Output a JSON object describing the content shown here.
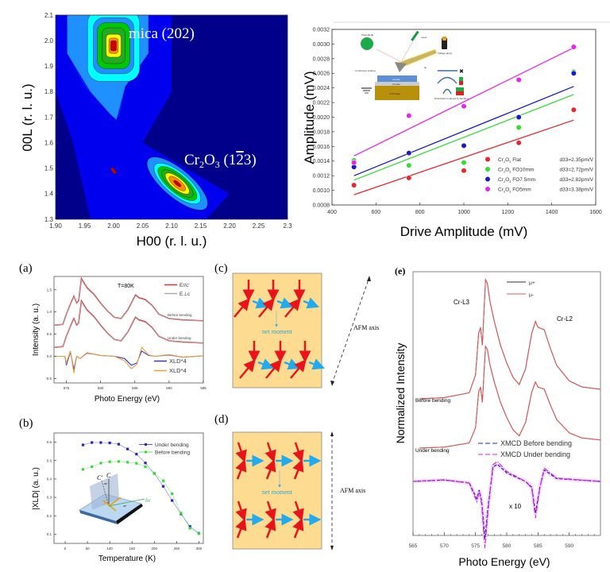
{
  "chart_data": [
    {
      "id": "rsm",
      "type": "heatmap",
      "title": "",
      "xlabel": "H00 (r. l. u.)",
      "ylabel": "00L (r. l. u.)",
      "xlim": [
        1.9,
        2.3
      ],
      "ylim": [
        1.3,
        2.1
      ],
      "xticks": [
        "1.90",
        "1.95",
        "2.00",
        "2.05",
        "2.10",
        "2.15",
        "2.20",
        "2.25",
        "2.3"
      ],
      "yticks": [
        "1.3",
        "1.4",
        "1.5",
        "1.6",
        "1.7",
        "1.8",
        "1.9",
        "2.0",
        "2.1"
      ],
      "peaks": [
        {
          "label": "mica (202)",
          "h": 2.0,
          "l": 1.98
        },
        {
          "label": "Cr2O3 (1-23)",
          "h": 2.11,
          "l": 1.44
        },
        {
          "label": "",
          "h": 2.0,
          "l": 1.49
        }
      ],
      "annotations": {
        "mica": "mica (202)",
        "cr_pre": "Cr",
        "cr_sub1": "2",
        "cr_mid": "O",
        "cr_sub2": "3",
        "cr_idx": " (1",
        "cr_bar": "2",
        "cr_end": "3)"
      },
      "colormap": [
        "#00008b",
        "#0000ff",
        "#1e90ff",
        "#00ffff",
        "#00c800",
        "#ffff00",
        "#ff8c00",
        "#cc0000"
      ]
    },
    {
      "id": "pfm",
      "type": "scatter",
      "xlabel": "Drive Amplitude (mV)",
      "ylabel": "Amplitude (mV)",
      "xlim": [
        400,
        1600
      ],
      "ylim": [
        0.0008,
        0.0032
      ],
      "xticks": [
        "400",
        "600",
        "800",
        "1000",
        "1200",
        "1400",
        "1600"
      ],
      "yticks": [
        "0.0008",
        "0.0010",
        "0.0012",
        "0.0014",
        "0.0016",
        "0.0018",
        "0.0020",
        "0.0022",
        "0.0024",
        "0.0026",
        "0.0028",
        "0.0030",
        "0.0032"
      ],
      "x": [
        500,
        750,
        1000,
        1250,
        1500
      ],
      "series": [
        {
          "name": "Cr2O3 Flat",
          "label_main": "Flat",
          "d33": "d33=2.35pm/V",
          "color": "#e8262b",
          "values": [
            0.00107,
            0.00117,
            0.00127,
            0.00165,
            0.0021
          ],
          "fit": [
            0.00094,
            0.00196
          ]
        },
        {
          "name": "Cr2O3 FO10mm",
          "label_main": "FO10mm",
          "d33": "d33=2.72pm/V",
          "color": "#33dd33",
          "values": [
            0.00141,
            0.00134,
            0.00138,
            0.00186,
            0.00262
          ],
          "fit": [
            0.00114,
            0.00231
          ]
        },
        {
          "name": "Cr2O3 FO7.5mm",
          "label_main": "FO7.5mm",
          "d33": "d33=2.82pm/V",
          "color": "#1a1acc",
          "values": [
            0.00132,
            0.00151,
            0.00161,
            0.002,
            0.0026
          ],
          "fit": [
            0.0012,
            0.00242
          ]
        },
        {
          "name": "Cr2O3 FO5mm",
          "label_main": "FO5mm",
          "d33": "d33=3.38pm/V",
          "color": "#ee22ee",
          "values": [
            0.00138,
            0.00202,
            0.00215,
            0.00251,
            0.00296
          ],
          "fit": [
            0.00147,
            0.00295
          ]
        }
      ],
      "inset_labels": [
        "Photodiode",
        "Laser",
        "Voltage apply",
        "Conductive coating",
        "tip",
        "sample",
        "Al plate",
        "XYZ stage",
        "Polarization induced by bending"
      ]
    },
    {
      "id": "a",
      "type": "line",
      "panel": "(a)",
      "xlabel": "Photo Energy (eV)",
      "ylabel": "Intensity (a. u.)",
      "xlim": [
        573.2,
        595
      ],
      "ylim": [
        -0.6,
        1.8
      ],
      "xticks": [
        "575",
        "580",
        "585",
        "590",
        "595"
      ],
      "yticks": [
        "-0.5",
        "0.0",
        "0.5",
        "1.0",
        "1.5"
      ],
      "annotation": "T=80K",
      "curve_labels": [
        "Before bending",
        "Under bending"
      ],
      "legend": [
        {
          "name": "E//c'",
          "color": "#e03030"
        },
        {
          "name": "E⊥c",
          "color": "#aaaaaa"
        },
        {
          "name": "XLD*4",
          "color": "#3333dd"
        },
        {
          "name": "XLD*4",
          "color": "#f0a030"
        }
      ],
      "series": [
        {
          "name": "Before bending E//c'",
          "color": "#e03030",
          "offset": 0.7,
          "points": [
            [
              573.2,
              0
            ],
            [
              574.5,
              0.02
            ],
            [
              575,
              0.25
            ],
            [
              575.8,
              0.55
            ],
            [
              576.1,
              0.65
            ],
            [
              576.5,
              0.5
            ],
            [
              576.8,
              0.55
            ],
            [
              577.2,
              1.05
            ],
            [
              577.6,
              0.95
            ],
            [
              578,
              0.85
            ],
            [
              579,
              0.7
            ],
            [
              580,
              0.5
            ],
            [
              581,
              0.32
            ],
            [
              582,
              0.18
            ],
            [
              583,
              0.15
            ],
            [
              584,
              0.35
            ],
            [
              585.1,
              0.68
            ],
            [
              585.6,
              0.62
            ],
            [
              586.5,
              0.58
            ],
            [
              587.5,
              0.45
            ],
            [
              588.5,
              0.25
            ],
            [
              590,
              0.15
            ],
            [
              592,
              0.12
            ],
            [
              595,
              0.1
            ]
          ]
        },
        {
          "name": "Under bending E//c'",
          "color": "#e03030",
          "offset": 0.2,
          "points": [
            [
              573.2,
              0
            ],
            [
              574.5,
              0.02
            ],
            [
              575,
              0.25
            ],
            [
              575.8,
              0.55
            ],
            [
              576.1,
              0.65
            ],
            [
              576.5,
              0.5
            ],
            [
              576.8,
              0.55
            ],
            [
              577.2,
              1.05
            ],
            [
              577.6,
              0.95
            ],
            [
              578,
              0.85
            ],
            [
              579,
              0.7
            ],
            [
              580,
              0.5
            ],
            [
              581,
              0.32
            ],
            [
              582,
              0.18
            ],
            [
              583,
              0.15
            ],
            [
              584,
              0.35
            ],
            [
              585.1,
              0.68
            ],
            [
              585.6,
              0.62
            ],
            [
              586.5,
              0.58
            ],
            [
              587.5,
              0.45
            ],
            [
              588.5,
              0.25
            ],
            [
              590,
              0.15
            ],
            [
              592,
              0.12
            ],
            [
              595,
              0.1
            ]
          ]
        },
        {
          "name": "XLD*4 blue",
          "color": "#3333dd",
          "offset": 0,
          "points": [
            [
              573.2,
              0
            ],
            [
              574.8,
              0
            ],
            [
              575,
              -0.2
            ],
            [
              575.6,
              0.1
            ],
            [
              576.1,
              -0.3
            ],
            [
              576.5,
              0
            ],
            [
              577,
              -0.05
            ],
            [
              578,
              0.07
            ],
            [
              579,
              0.05
            ],
            [
              580,
              0.02
            ],
            [
              582,
              0
            ],
            [
              583.5,
              -0.05
            ],
            [
              584.5,
              -0.2
            ],
            [
              585.3,
              -0.15
            ],
            [
              586,
              0.12
            ],
            [
              587,
              0.02
            ],
            [
              588,
              0
            ],
            [
              590,
              0.03
            ],
            [
              592,
              -0.02
            ],
            [
              595,
              0.01
            ]
          ]
        },
        {
          "name": "XLD*4 orange",
          "color": "#f0a030",
          "offset": 0,
          "points": [
            [
              573.2,
              0
            ],
            [
              574.8,
              0
            ],
            [
              575,
              -0.15
            ],
            [
              575.6,
              0.12
            ],
            [
              576.1,
              -0.38
            ],
            [
              576.5,
              0
            ],
            [
              577,
              -0.05
            ],
            [
              578,
              0.08
            ],
            [
              579,
              0.05
            ],
            [
              580,
              0.02
            ],
            [
              582,
              0
            ],
            [
              583.5,
              -0.1
            ],
            [
              584.5,
              -0.28
            ],
            [
              585.3,
              -0.18
            ],
            [
              586,
              0.2
            ],
            [
              587,
              0.03
            ],
            [
              588,
              0
            ],
            [
              590,
              0.04
            ],
            [
              592,
              -0.02
            ],
            [
              595,
              0.01
            ]
          ]
        }
      ]
    },
    {
      "id": "b",
      "type": "line",
      "panel": "(b)",
      "xlabel": "Temperature (K)",
      "ylabel": "|XLD| (a. u.)",
      "xlim": [
        -25,
        310
      ],
      "ylim": [
        0.05,
        0.65
      ],
      "xticks": [
        "0",
        "50",
        "100",
        "150",
        "200",
        "250",
        "300"
      ],
      "yticks": [
        "0.1",
        "0.2",
        "0.3",
        "0.4",
        "0.5",
        "0.6"
      ],
      "x": [
        40,
        60,
        80,
        100,
        120,
        140,
        160,
        180,
        200,
        220,
        240,
        260,
        280,
        300
      ],
      "series": [
        {
          "name": "Under bending",
          "color": "#2222cc",
          "values": [
            0.585,
            0.598,
            0.598,
            0.596,
            0.589,
            0.563,
            0.535,
            0.487,
            0.43,
            0.36,
            0.283,
            0.21,
            0.142,
            0.105
          ]
        },
        {
          "name": "Before bending",
          "color": "#33dd33",
          "values": [
            0.452,
            0.467,
            0.486,
            0.494,
            0.495,
            0.491,
            0.485,
            0.466,
            0.43,
            0.39,
            0.32,
            0.214,
            0.133,
            0.103
          ]
        }
      ],
      "inset_labels": {
        "c": "C",
        "cprime": "C'",
        "e": "E",
        "hv": "hν",
        "angle": "30°"
      }
    },
    {
      "id": "e",
      "type": "line",
      "panel": "(e)",
      "xlabel": "Photo Energy (eV)",
      "ylabel": "Normalized Intensity",
      "xlim": [
        565,
        595
      ],
      "xticks": [
        "565",
        "570",
        "575",
        "580",
        "585",
        "590"
      ],
      "annotations": [
        "Cr-L3",
        "Cr-L2",
        "Before bending",
        "Under bending",
        "x 10"
      ],
      "legend": [
        {
          "name": "μ+",
          "color": "#333333"
        },
        {
          "name": "μ-",
          "color": "#ee5555"
        },
        {
          "name": "XMCD Before bending",
          "color": "#2222dd"
        },
        {
          "name": "XMCD Under bending",
          "color": "#dd22dd"
        }
      ]
    }
  ],
  "panels": {
    "c": {
      "label": "(c)",
      "net_moment": "net moment",
      "axis": "AFM axis"
    },
    "d": {
      "label": "(d)",
      "net_moment": "net moment",
      "axis": "AFM axis"
    }
  }
}
